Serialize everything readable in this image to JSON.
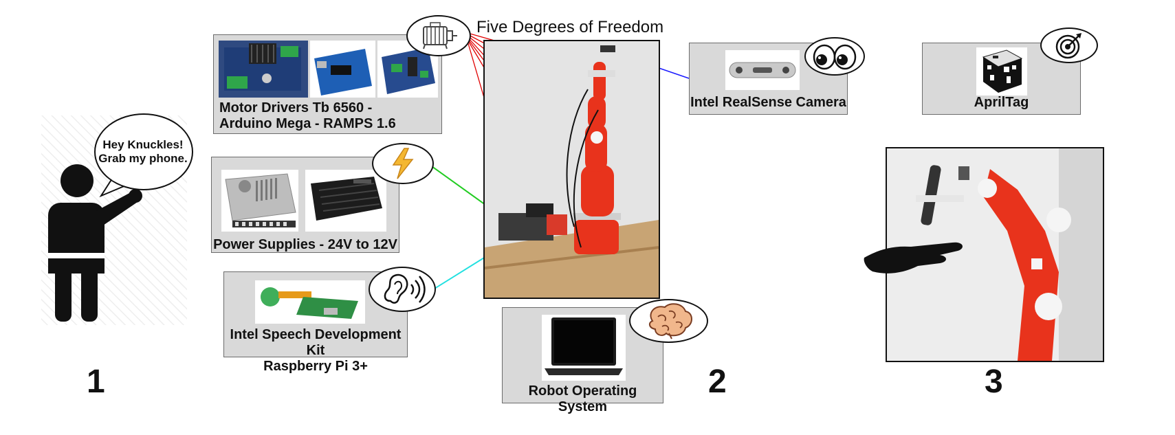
{
  "title": "Five Degrees of Freedom",
  "speech": {
    "line1": "Hey Knuckles!",
    "line2": "Grab my phone."
  },
  "components": {
    "motor": {
      "line1": "Motor Drivers Tb 6560 -",
      "line2": "Arduino Mega - RAMPS 1.6",
      "icon": "motor-icon"
    },
    "power": {
      "label": "Power Supplies - 24V to 12V",
      "icon": "lightning-icon"
    },
    "speech_kit": {
      "line1": "Intel Speech Development Kit",
      "line2": "Raspberry Pi 3+",
      "icon": "ear-sound-icon"
    },
    "camera": {
      "label": "Intel RealSense Camera",
      "icon": "eyes-icon"
    },
    "apriltag": {
      "label": "AprilTag",
      "icon": "target-icon"
    },
    "ros": {
      "label": "Robot Operating System",
      "icon": "brain-icon"
    }
  },
  "steps": [
    "1",
    "2",
    "3"
  ],
  "colors": {
    "panel": "#d9d9d9",
    "motor_lines": "#e00000",
    "power_line": "#22cc22",
    "speech_line": "#22e0e0",
    "camera_line": "#1a1aff",
    "robot": "#e8331c"
  }
}
